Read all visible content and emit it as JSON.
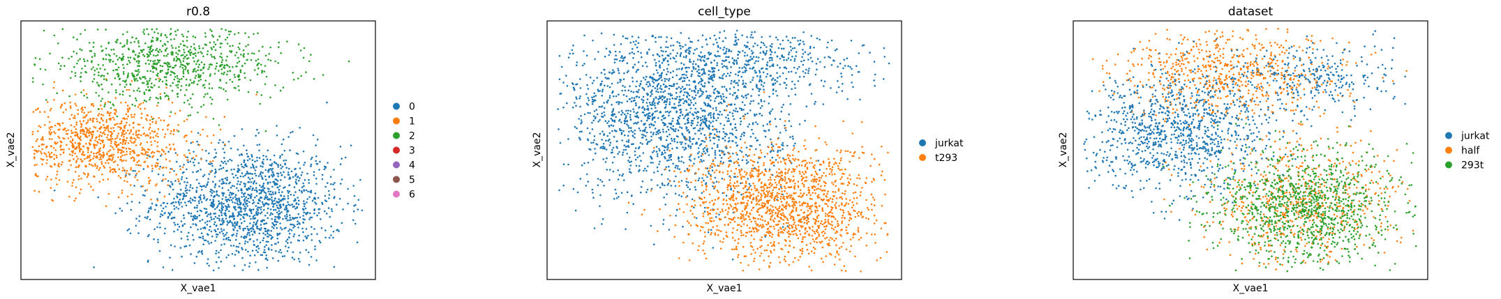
{
  "colors": {
    "tab_blue": "#1f77b4",
    "tab_orange": "#ff7f0e",
    "tab_green": "#2ca02c",
    "tab_red": "#d62728",
    "tab_purple": "#9467bd",
    "tab_brown": "#8c564b",
    "tab_pink": "#e377c2"
  },
  "chart_data": [
    {
      "type": "scatter",
      "title": "r0.8",
      "xlabel": "X_vae1",
      "ylabel": "X_vae2",
      "xlim": [
        0,
        1
      ],
      "ylim": [
        0,
        1
      ],
      "ticks": "none",
      "grid": false,
      "legend_position": "right",
      "legend": [
        {
          "label": "0",
          "color": "#1f77b4"
        },
        {
          "label": "1",
          "color": "#ff7f0e"
        },
        {
          "label": "2",
          "color": "#2ca02c"
        },
        {
          "label": "3",
          "color": "#d62728"
        },
        {
          "label": "4",
          "color": "#9467bd"
        },
        {
          "label": "5",
          "color": "#8c564b"
        },
        {
          "label": "6",
          "color": "#e377c2"
        }
      ],
      "clusters": [
        {
          "category": "0",
          "color": "#1f77b4",
          "center": [
            0.64,
            0.29
          ],
          "spread": [
            0.135,
            0.115
          ],
          "n": 1500
        },
        {
          "category": "1",
          "color": "#ff7f0e",
          "center": [
            0.23,
            0.53
          ],
          "spread": [
            0.12,
            0.085
          ],
          "n": 950
        },
        {
          "category": "2",
          "color": "#2ca02c",
          "center": [
            0.41,
            0.83
          ],
          "spread": [
            0.17,
            0.075
          ],
          "n": 850
        }
      ]
    },
    {
      "type": "scatter",
      "title": "cell_type",
      "xlabel": "X_vae1",
      "ylabel": "X_vae2",
      "xlim": [
        0,
        1
      ],
      "ylim": [
        0,
        1
      ],
      "ticks": "none",
      "grid": false,
      "legend_position": "right",
      "legend": [
        {
          "label": "jurkat",
          "color": "#1f77b4"
        },
        {
          "label": "t293",
          "color": "#ff7f0e"
        }
      ],
      "clusters": [
        {
          "category": "jurkat",
          "color": "#1f77b4",
          "center": [
            0.36,
            0.64
          ],
          "spread": [
            0.16,
            0.16
          ],
          "n": 1800
        },
        {
          "category": "jurkat",
          "color": "#1f77b4",
          "center": [
            0.58,
            0.85
          ],
          "spread": [
            0.16,
            0.06
          ],
          "n": 400
        },
        {
          "category": "t293",
          "color": "#ff7f0e",
          "center": [
            0.67,
            0.29
          ],
          "spread": [
            0.135,
            0.115
          ],
          "n": 1500
        }
      ]
    },
    {
      "type": "scatter",
      "title": "dataset",
      "xlabel": "X_vae1",
      "ylabel": "X_vae2",
      "xlim": [
        0,
        1
      ],
      "ylim": [
        0,
        1
      ],
      "ticks": "none",
      "grid": false,
      "legend_position": "right",
      "legend": [
        {
          "label": "jurkat",
          "color": "#1f77b4"
        },
        {
          "label": "half",
          "color": "#ff7f0e"
        },
        {
          "label": "293t",
          "color": "#2ca02c"
        }
      ],
      "clusters": [
        {
          "category": "half",
          "color": "#ff7f0e",
          "center": [
            0.45,
            0.8
          ],
          "spread": [
            0.16,
            0.09
          ],
          "n": 700
        },
        {
          "category": "half",
          "color": "#ff7f0e",
          "center": [
            0.64,
            0.29
          ],
          "spread": [
            0.14,
            0.12
          ],
          "n": 600
        },
        {
          "category": "jurkat",
          "color": "#1f77b4",
          "center": [
            0.3,
            0.57
          ],
          "spread": [
            0.13,
            0.11
          ],
          "n": 1000
        },
        {
          "category": "jurkat",
          "color": "#1f77b4",
          "center": [
            0.68,
            0.78
          ],
          "spread": [
            0.12,
            0.07
          ],
          "n": 300
        },
        {
          "category": "293t",
          "color": "#2ca02c",
          "center": [
            0.66,
            0.28
          ],
          "spread": [
            0.13,
            0.11
          ],
          "n": 1100
        }
      ]
    }
  ]
}
